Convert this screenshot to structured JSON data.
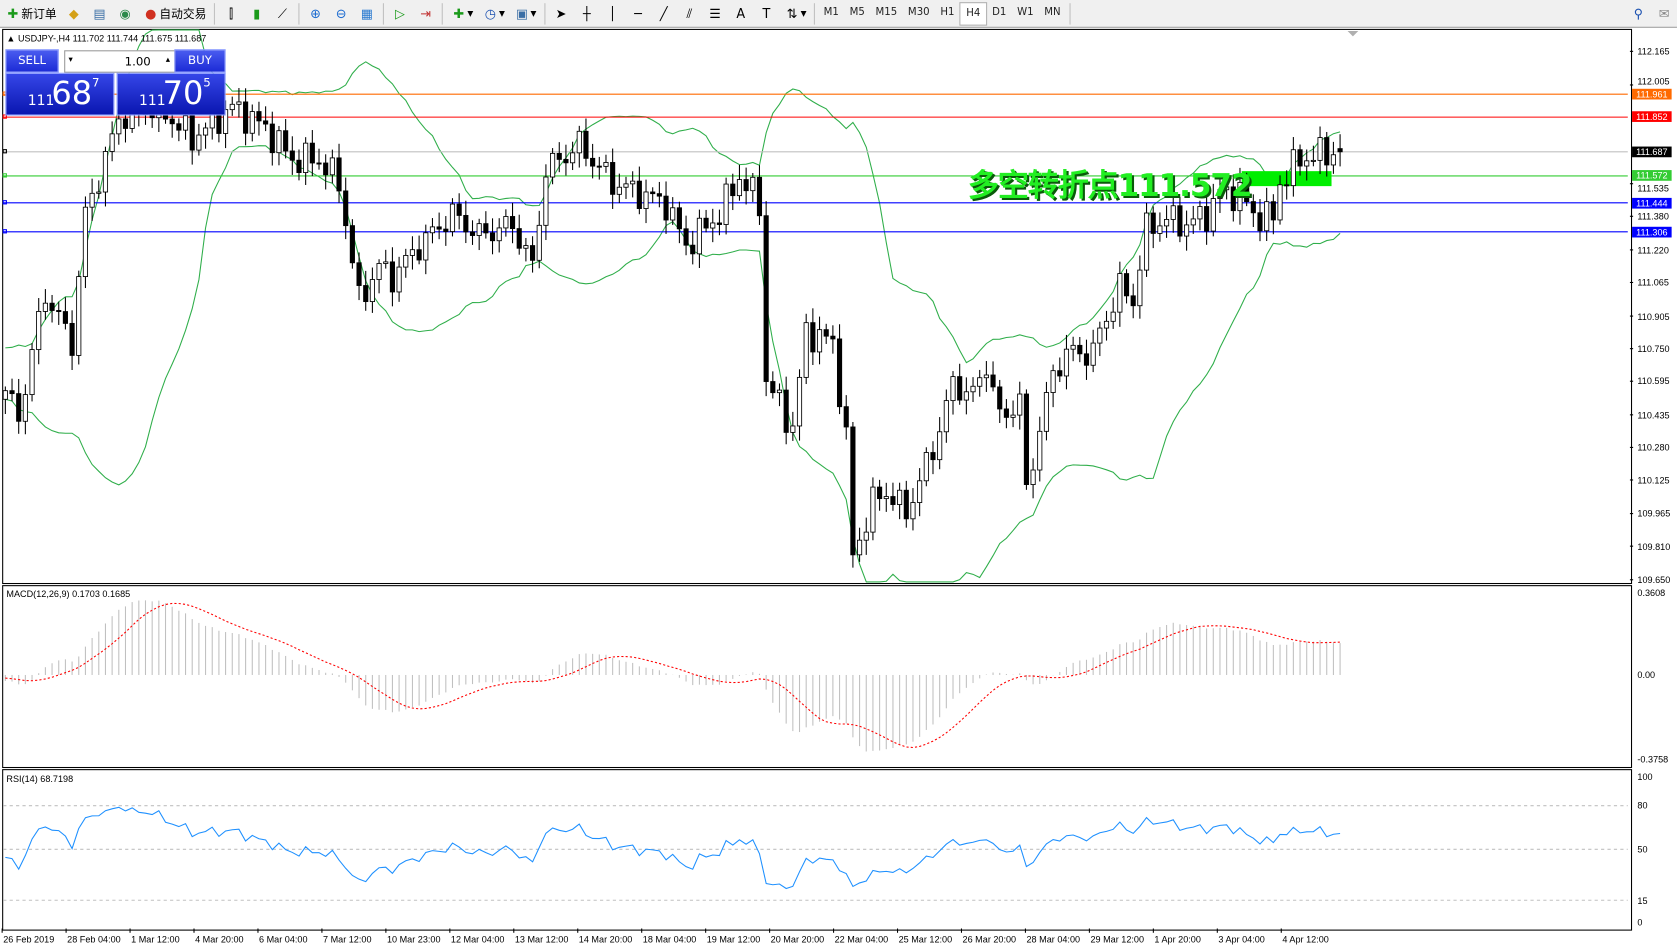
{
  "toolbar": {
    "new_order": "新订单",
    "auto_trading": "自动交易",
    "timeframes": [
      "M1",
      "M5",
      "M15",
      "M30",
      "H1",
      "H4",
      "D1",
      "W1",
      "MN"
    ],
    "active_timeframe": "H4"
  },
  "chart": {
    "symbol_info": "USDJPY-,H4  111.702 111.744 111.675 111.687",
    "annotation": "多空转折点111.572",
    "colors": {
      "bull_fill": "#ffffff",
      "bear_fill": "#000000",
      "bands": "#2fae4a",
      "macd_hist": "#c0c0c0",
      "macd_signal": "#ff0000",
      "rsi": "#1e90ff"
    }
  },
  "trade_panel": {
    "sell_label": "SELL",
    "buy_label": "BUY",
    "lot": "1.00",
    "bid": {
      "big": "111",
      "main": "68",
      "sup": "7"
    },
    "ask": {
      "big": "111",
      "main": "70",
      "sup": "5"
    }
  },
  "price_axis": {
    "ticks": [
      "112.165",
      "112.005",
      "111.535",
      "111.380",
      "111.220",
      "111.065",
      "110.905",
      "110.750",
      "110.595",
      "110.435",
      "110.280",
      "110.125",
      "109.965",
      "109.810",
      "109.650"
    ]
  },
  "levels": [
    {
      "price": "111.961",
      "color": "#ff6a00"
    },
    {
      "price": "111.852",
      "color": "#ff0000"
    },
    {
      "price": "111.687",
      "color": "#000000",
      "line": "#c0c0c0"
    },
    {
      "price": "111.572",
      "color": "#33cc33"
    },
    {
      "price": "111.444",
      "color": "#0000ff"
    },
    {
      "price": "111.306",
      "color": "#0000ff"
    }
  ],
  "macd": {
    "label": "MACD(12,26,9) 0.1703 0.1685",
    "ticks": [
      "0.3608",
      "0.00",
      "-0.3758"
    ]
  },
  "rsi": {
    "label": "RSI(14) 68.7198",
    "ticks": [
      "100",
      "80",
      "50",
      "15",
      "0"
    ]
  },
  "time_axis": [
    "26 Feb 2019",
    "28 Feb 04:00",
    "1 Mar 12:00",
    "4 Mar 20:00",
    "6 Mar 04:00",
    "7 Mar 12:00",
    "10 Mar 23:00",
    "12 Mar 04:00",
    "13 Mar 12:00",
    "14 Mar 20:00",
    "18 Mar 04:00",
    "19 Mar 12:00",
    "20 Mar 20:00",
    "22 Mar 04:00",
    "25 Mar 12:00",
    "26 Mar 20:00",
    "28 Mar 04:00",
    "29 Mar 12:00",
    "1 Apr 20:00",
    "3 Apr 04:00",
    "4 Apr 12:00"
  ],
  "price_path": [
    [
      0,
      110.55
    ],
    [
      2,
      110.42
    ],
    [
      5,
      110.88
    ],
    [
      6,
      111.01
    ],
    [
      10,
      110.78
    ],
    [
      12,
      111.39
    ],
    [
      15,
      111.65
    ],
    [
      17,
      111.85
    ],
    [
      23,
      111.9
    ],
    [
      28,
      111.75
    ],
    [
      34,
      111.9
    ],
    [
      39,
      111.8
    ],
    [
      43,
      111.65
    ],
    [
      47,
      111.65
    ],
    [
      50,
      111.54
    ],
    [
      53,
      110.98
    ],
    [
      56,
      111.14
    ],
    [
      58,
      111.09
    ],
    [
      62,
      111.24
    ],
    [
      67,
      111.39
    ],
    [
      71,
      111.29
    ],
    [
      76,
      111.34
    ],
    [
      79,
      111.14
    ],
    [
      81,
      111.6
    ],
    [
      86,
      111.72
    ],
    [
      91,
      111.54
    ],
    [
      95,
      111.49
    ],
    [
      99,
      111.44
    ],
    [
      102,
      111.24
    ],
    [
      107,
      111.39
    ],
    [
      110,
      111.57
    ],
    [
      113,
      111.44
    ],
    [
      114,
      110.6
    ],
    [
      118,
      110.37
    ],
    [
      120,
      110.83
    ],
    [
      124,
      110.78
    ],
    [
      126,
      110.32
    ],
    [
      127,
      109.76
    ],
    [
      130,
      110.02
    ],
    [
      132,
      110.07
    ],
    [
      135,
      109.97
    ],
    [
      139,
      110.27
    ],
    [
      142,
      110.58
    ],
    [
      145,
      110.53
    ],
    [
      147,
      110.68
    ],
    [
      149,
      110.42
    ],
    [
      152,
      110.5
    ],
    [
      153,
      110.07
    ],
    [
      155,
      110.37
    ],
    [
      157,
      110.63
    ],
    [
      159,
      110.73
    ],
    [
      163,
      110.73
    ],
    [
      164,
      110.83
    ],
    [
      167,
      111.04
    ],
    [
      169,
      110.98
    ],
    [
      171,
      111.32
    ],
    [
      174,
      111.37
    ],
    [
      177,
      111.34
    ],
    [
      180,
      111.39
    ],
    [
      182,
      111.49
    ],
    [
      185,
      111.49
    ],
    [
      187,
      111.39
    ],
    [
      190,
      111.37
    ],
    [
      191,
      111.54
    ],
    [
      194,
      111.65
    ],
    [
      196,
      111.67
    ],
    [
      200,
      111.687
    ]
  ]
}
